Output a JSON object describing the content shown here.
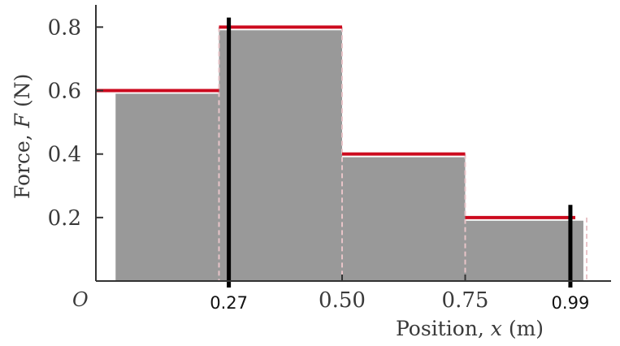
{
  "chart_data": {
    "type": "bar",
    "xlabel_prefix": "Position, ",
    "xlabel_var": "x",
    "xlabel_unit": " (m)",
    "ylabel_prefix": "Force, ",
    "ylabel_var": "F",
    "ylabel_unit": " (N)",
    "origin_label": "O",
    "ylim": [
      0,
      0.87
    ],
    "xlim": [
      0,
      1.0
    ],
    "yticks": [
      {
        "value": 0.2,
        "label": "0.2"
      },
      {
        "value": 0.4,
        "label": "0.4"
      },
      {
        "value": 0.6,
        "label": "0.6"
      },
      {
        "value": 0.8,
        "label": "0.8"
      }
    ],
    "xticks": [
      {
        "value": 0.5,
        "label": "0.50"
      },
      {
        "value": 0.75,
        "label": "0.75"
      }
    ],
    "force_steps": [
      {
        "x_start": 0.0,
        "x_end": 0.25,
        "force": 0.6
      },
      {
        "x_start": 0.25,
        "x_end": 0.5,
        "force": 0.8
      },
      {
        "x_start": 0.5,
        "x_end": 0.75,
        "force": 0.4
      },
      {
        "x_start": 0.75,
        "x_end": 1.0,
        "force": 0.2
      }
    ],
    "bars": [
      {
        "x_start": 0.04,
        "x_end": 0.25,
        "force": 0.59
      },
      {
        "x_start": 0.25,
        "x_end": 0.5,
        "force": 0.79
      },
      {
        "x_start": 0.5,
        "x_end": 0.75,
        "force": 0.39
      },
      {
        "x_start": 0.75,
        "x_end": 0.99,
        "force": 0.19
      }
    ],
    "markers": [
      {
        "x": 0.27,
        "label": "0.27",
        "top": 0.83
      },
      {
        "x": 0.99,
        "label": "0.99",
        "top": 0.24
      }
    ],
    "colors": {
      "bar_fill": "#999999",
      "step_line": "#cc0a1e",
      "marker_line": "#000000",
      "axis": "#333333",
      "dashed_edge": "#e8c4c8"
    }
  }
}
